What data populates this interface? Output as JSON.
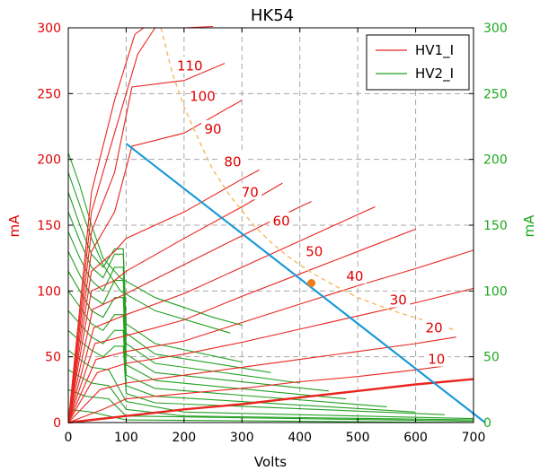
{
  "chart_data": {
    "type": "line",
    "title": "HK54",
    "xlabel": "Volts",
    "ylabel_left": "mA",
    "ylabel_right": "mA",
    "xlim": [
      0,
      700
    ],
    "ylim": [
      0,
      300
    ],
    "x_ticks": [
      "0",
      "100",
      "200",
      "300",
      "400",
      "500",
      "600",
      "700"
    ],
    "y_ticks": [
      "0",
      "50",
      "100",
      "150",
      "200",
      "250",
      "300"
    ],
    "grid": true,
    "legend": {
      "placement": "top-right",
      "entries": [
        {
          "name": "HV1_I",
          "color": "#e8251f"
        },
        {
          "name": "HV2_I",
          "color": "#22a022"
        }
      ]
    },
    "colors": {
      "hv1": "#e8251f",
      "hv2": "#22a022",
      "load_line": "#1a9ad6",
      "dissipation": "#f5b961",
      "operating_point": "#f07d1a",
      "left_axis": "#e00000",
      "right_axis": "#1aa81a"
    },
    "plate_curves": [
      {
        "grid": "0",
        "points": [
          [
            0,
            0
          ],
          [
            100,
            5
          ],
          [
            200,
            10
          ],
          [
            300,
            14
          ],
          [
            400,
            19
          ],
          [
            500,
            24
          ],
          [
            600,
            29
          ],
          [
            700,
            33
          ]
        ]
      },
      {
        "grid": "10",
        "points": [
          [
            0,
            0
          ],
          [
            60,
            10
          ],
          [
            100,
            18
          ],
          [
            200,
            22
          ],
          [
            300,
            26
          ],
          [
            400,
            31
          ],
          [
            500,
            35
          ],
          [
            600,
            40
          ],
          [
            650,
            43
          ]
        ]
      },
      {
        "grid": "20",
        "points": [
          [
            0,
            0
          ],
          [
            55,
            25
          ],
          [
            100,
            30
          ],
          [
            200,
            36
          ],
          [
            300,
            42
          ],
          [
            400,
            48
          ],
          [
            500,
            54
          ],
          [
            600,
            60
          ],
          [
            670,
            65
          ]
        ]
      },
      {
        "grid": "30",
        "points": [
          [
            0,
            0
          ],
          [
            50,
            38
          ],
          [
            100,
            45
          ],
          [
            200,
            52
          ],
          [
            300,
            61
          ],
          [
            400,
            71
          ],
          [
            500,
            81
          ],
          [
            600,
            91
          ],
          [
            700,
            102
          ]
        ]
      },
      {
        "grid": "40",
        "points": [
          [
            0,
            0
          ],
          [
            48,
            48
          ],
          [
            100,
            54
          ],
          [
            200,
            62
          ],
          [
            300,
            76
          ],
          [
            400,
            90
          ],
          [
            500,
            104
          ],
          [
            600,
            117
          ],
          [
            700,
            131
          ]
        ]
      },
      {
        "grid": "50",
        "points": [
          [
            0,
            0
          ],
          [
            46,
            60
          ],
          [
            100,
            66
          ],
          [
            200,
            78
          ],
          [
            300,
            96
          ],
          [
            400,
            113
          ],
          [
            500,
            130
          ],
          [
            600,
            147
          ]
        ]
      },
      {
        "grid": "60",
        "points": [
          [
            0,
            0
          ],
          [
            44,
            72
          ],
          [
            100,
            82
          ],
          [
            200,
            98
          ],
          [
            300,
            118
          ],
          [
            400,
            138
          ],
          [
            500,
            158
          ],
          [
            530,
            164
          ]
        ]
      },
      {
        "grid": "70",
        "points": [
          [
            0,
            0
          ],
          [
            42,
            86
          ],
          [
            100,
            98
          ],
          [
            200,
            120
          ],
          [
            300,
            142
          ],
          [
            400,
            164
          ],
          [
            420,
            168
          ]
        ]
      },
      {
        "grid": "80",
        "points": [
          [
            0,
            0
          ],
          [
            40,
            100
          ],
          [
            80,
            108
          ],
          [
            100,
            115
          ],
          [
            200,
            140
          ],
          [
            300,
            164
          ],
          [
            370,
            182
          ]
        ]
      },
      {
        "grid": "90",
        "points": [
          [
            0,
            0
          ],
          [
            40,
            115
          ],
          [
            80,
            130
          ],
          [
            100,
            140
          ],
          [
            200,
            160
          ],
          [
            300,
            185
          ],
          [
            330,
            192
          ]
        ]
      },
      {
        "grid": "100",
        "points": [
          [
            0,
            0
          ],
          [
            40,
            130
          ],
          [
            80,
            160
          ],
          [
            110,
            210
          ],
          [
            200,
            220
          ],
          [
            280,
            240
          ],
          [
            300,
            245
          ]
        ]
      },
      {
        "grid": "110",
        "points": [
          [
            0,
            0
          ],
          [
            40,
            145
          ],
          [
            80,
            190
          ],
          [
            110,
            255
          ],
          [
            200,
            260
          ],
          [
            270,
            273
          ]
        ]
      },
      {
        "grid": "120",
        "points": [
          [
            0,
            0
          ],
          [
            40,
            160
          ],
          [
            80,
            220
          ],
          [
            120,
            280
          ],
          [
            150,
            300
          ],
          [
            200,
            300
          ],
          [
            250,
            301
          ]
        ]
      },
      {
        "grid": "130",
        "points": [
          [
            0,
            0
          ],
          [
            40,
            175
          ],
          [
            80,
            245
          ],
          [
            115,
            295
          ],
          [
            130,
            300
          ],
          [
            160,
            300
          ]
        ]
      }
    ],
    "screen_curves": [
      {
        "points": [
          [
            0,
            205
          ],
          [
            20,
            180
          ],
          [
            40,
            150
          ],
          [
            60,
            125
          ],
          [
            90,
            110
          ],
          [
            150,
            95
          ],
          [
            250,
            80
          ],
          [
            300,
            74
          ]
        ]
      },
      {
        "points": [
          [
            0,
            190
          ],
          [
            20,
            165
          ],
          [
            40,
            140
          ],
          [
            60,
            120
          ],
          [
            90,
            100
          ],
          [
            150,
            85
          ],
          [
            280,
            68
          ]
        ]
      },
      {
        "points": [
          [
            0,
            175
          ],
          [
            20,
            150
          ],
          [
            40,
            128
          ],
          [
            60,
            118
          ],
          [
            80,
            132
          ],
          [
            95,
            132
          ],
          [
            100,
            75
          ],
          [
            150,
            60
          ],
          [
            300,
            46
          ]
        ]
      },
      {
        "points": [
          [
            0,
            160
          ],
          [
            20,
            138
          ],
          [
            40,
            118
          ],
          [
            60,
            110
          ],
          [
            80,
            128
          ],
          [
            95,
            128
          ],
          [
            100,
            68
          ],
          [
            150,
            52
          ],
          [
            350,
            38
          ]
        ]
      },
      {
        "points": [
          [
            0,
            145
          ],
          [
            20,
            125
          ],
          [
            40,
            108
          ],
          [
            60,
            100
          ],
          [
            80,
            118
          ],
          [
            95,
            118
          ],
          [
            100,
            60
          ],
          [
            150,
            45
          ],
          [
            400,
            30
          ]
        ]
      },
      {
        "points": [
          [
            0,
            130
          ],
          [
            20,
            112
          ],
          [
            40,
            96
          ],
          [
            60,
            90
          ],
          [
            80,
            108
          ],
          [
            95,
            108
          ],
          [
            100,
            52
          ],
          [
            150,
            38
          ],
          [
            450,
            24
          ]
        ]
      },
      {
        "points": [
          [
            0,
            115
          ],
          [
            20,
            100
          ],
          [
            40,
            85
          ],
          [
            60,
            80
          ],
          [
            80,
            95
          ],
          [
            95,
            95
          ],
          [
            100,
            44
          ],
          [
            150,
            32
          ],
          [
            480,
            18
          ]
        ]
      },
      {
        "points": [
          [
            0,
            100
          ],
          [
            20,
            88
          ],
          [
            40,
            75
          ],
          [
            60,
            70
          ],
          [
            80,
            82
          ],
          [
            95,
            82
          ],
          [
            100,
            36
          ],
          [
            150,
            26
          ],
          [
            550,
            12
          ]
        ]
      },
      {
        "points": [
          [
            0,
            85
          ],
          [
            20,
            75
          ],
          [
            40,
            65
          ],
          [
            60,
            60
          ],
          [
            80,
            70
          ],
          [
            95,
            70
          ],
          [
            100,
            28
          ],
          [
            150,
            20
          ],
          [
            600,
            8
          ]
        ]
      },
      {
        "points": [
          [
            0,
            70
          ],
          [
            20,
            62
          ],
          [
            40,
            55
          ],
          [
            60,
            50
          ],
          [
            80,
            58
          ],
          [
            95,
            58
          ],
          [
            100,
            22
          ],
          [
            150,
            15
          ],
          [
            650,
            6
          ]
        ]
      },
      {
        "points": [
          [
            0,
            55
          ],
          [
            20,
            48
          ],
          [
            40,
            42
          ],
          [
            70,
            40
          ],
          [
            100,
            16
          ],
          [
            200,
            8
          ],
          [
            700,
            3
          ]
        ]
      },
      {
        "points": [
          [
            0,
            40
          ],
          [
            20,
            35
          ],
          [
            40,
            30
          ],
          [
            70,
            28
          ],
          [
            100,
            10
          ],
          [
            200,
            5
          ],
          [
            700,
            2
          ]
        ]
      },
      {
        "points": [
          [
            0,
            25
          ],
          [
            30,
            20
          ],
          [
            70,
            18
          ],
          [
            100,
            5
          ],
          [
            700,
            1
          ]
        ]
      },
      {
        "points": [
          [
            0,
            10
          ],
          [
            40,
            8
          ],
          [
            100,
            2
          ],
          [
            700,
            0
          ]
        ]
      }
    ],
    "curve_labels": [
      {
        "text": "110",
        "x": 210,
        "y": 271
      },
      {
        "text": "100",
        "x": 232,
        "y": 248
      },
      {
        "text": "90",
        "x": 250,
        "y": 223
      },
      {
        "text": "80",
        "x": 284,
        "y": 198
      },
      {
        "text": "70",
        "x": 314,
        "y": 175
      },
      {
        "text": "60",
        "x": 368,
        "y": 153
      },
      {
        "text": "50",
        "x": 425,
        "y": 130
      },
      {
        "text": "40",
        "x": 495,
        "y": 111
      },
      {
        "text": "30",
        "x": 570,
        "y": 93
      },
      {
        "text": "20",
        "x": 632,
        "y": 72
      },
      {
        "text": "10",
        "x": 636,
        "y": 48
      }
    ],
    "max_dissipation_curve": {
      "points": [
        [
          160,
          300
        ],
        [
          180,
          265
        ],
        [
          200,
          240
        ],
        [
          225,
          215
        ],
        [
          250,
          192
        ],
        [
          280,
          172
        ],
        [
          320,
          150
        ],
        [
          350,
          137
        ],
        [
          380,
          126
        ],
        [
          420,
          114
        ],
        [
          460,
          104
        ],
        [
          500,
          95
        ],
        [
          560,
          85
        ],
        [
          620,
          77
        ],
        [
          670,
          70
        ]
      ]
    },
    "load_line": {
      "points": [
        [
          100,
          212
        ],
        [
          720,
          0
        ]
      ]
    },
    "operating_point": {
      "x": 420,
      "y": 106
    }
  }
}
